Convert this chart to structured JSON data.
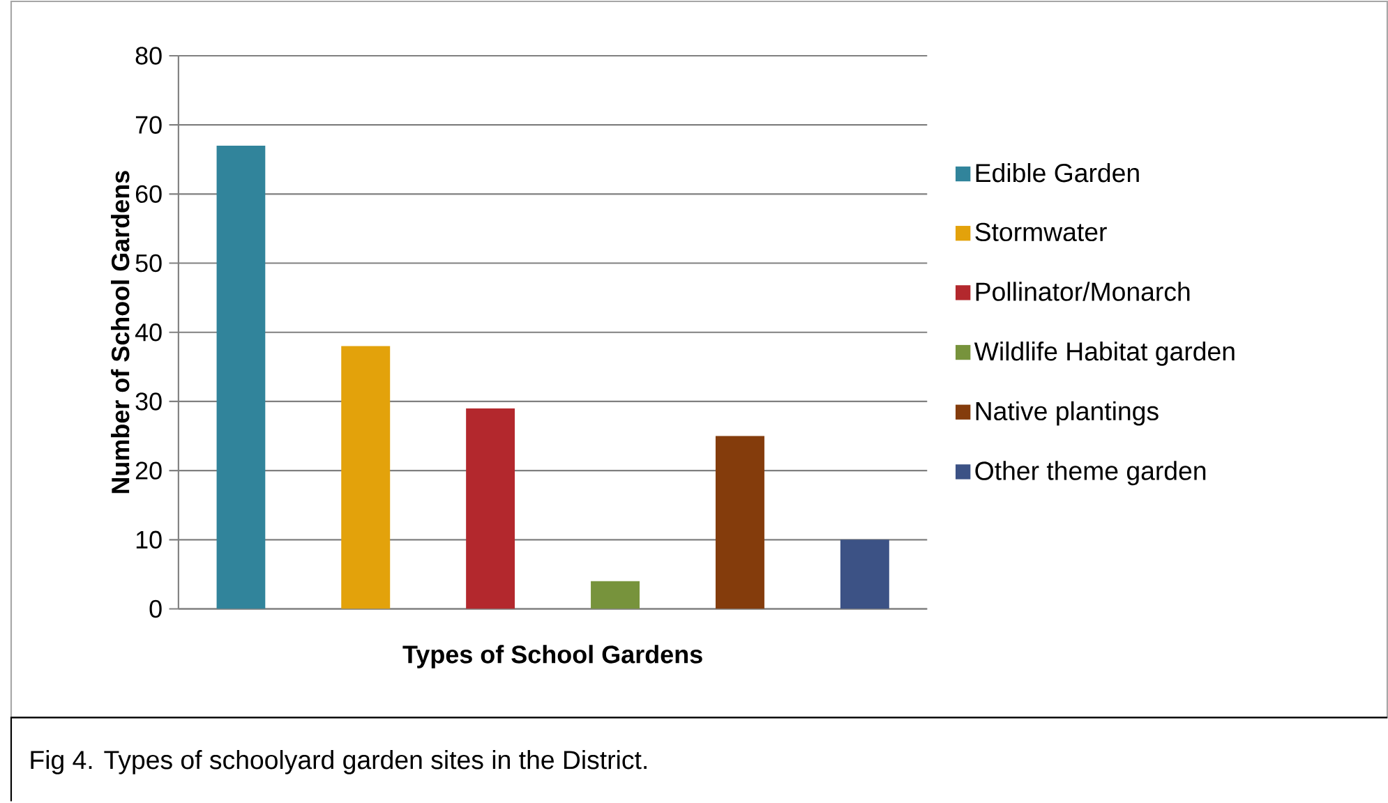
{
  "chart_data": {
    "type": "bar",
    "xlabel": "Types of School Gardens",
    "ylabel": "Number of School Gardens",
    "annotations": [
      "Fig 4. Types of schoolyard garden sites in the District."
    ],
    "categories": [
      null,
      null,
      null,
      null,
      null,
      null
    ],
    "series": [
      {
        "name": "Edible Garden",
        "color": "#31849b",
        "values": [
          67,
          null,
          null,
          null,
          null,
          null
        ]
      },
      {
        "name": "Stormwater",
        "color": "#e3a20b",
        "values": [
          null,
          38,
          null,
          null,
          null,
          null
        ]
      },
      {
        "name": "Pollinator/Monarch",
        "color": "#b3282d",
        "values": [
          null,
          null,
          29,
          null,
          null,
          null
        ]
      },
      {
        "name": "Wildlife Habitat garden",
        "color": "#77933c",
        "values": [
          null,
          null,
          null,
          4,
          null,
          null
        ]
      },
      {
        "name": "Native plantings",
        "color": "#843c0c",
        "values": [
          null,
          null,
          null,
          null,
          25,
          null
        ]
      },
      {
        "name": "Other theme garden",
        "color": "#3c5285",
        "values": [
          null,
          null,
          null,
          null,
          null,
          10
        ]
      }
    ],
    "ylim": [
      0,
      80
    ],
    "yticks": [
      0,
      10,
      20,
      30,
      40,
      50,
      60,
      70,
      80
    ],
    "grid": "y",
    "legend": "right"
  }
}
